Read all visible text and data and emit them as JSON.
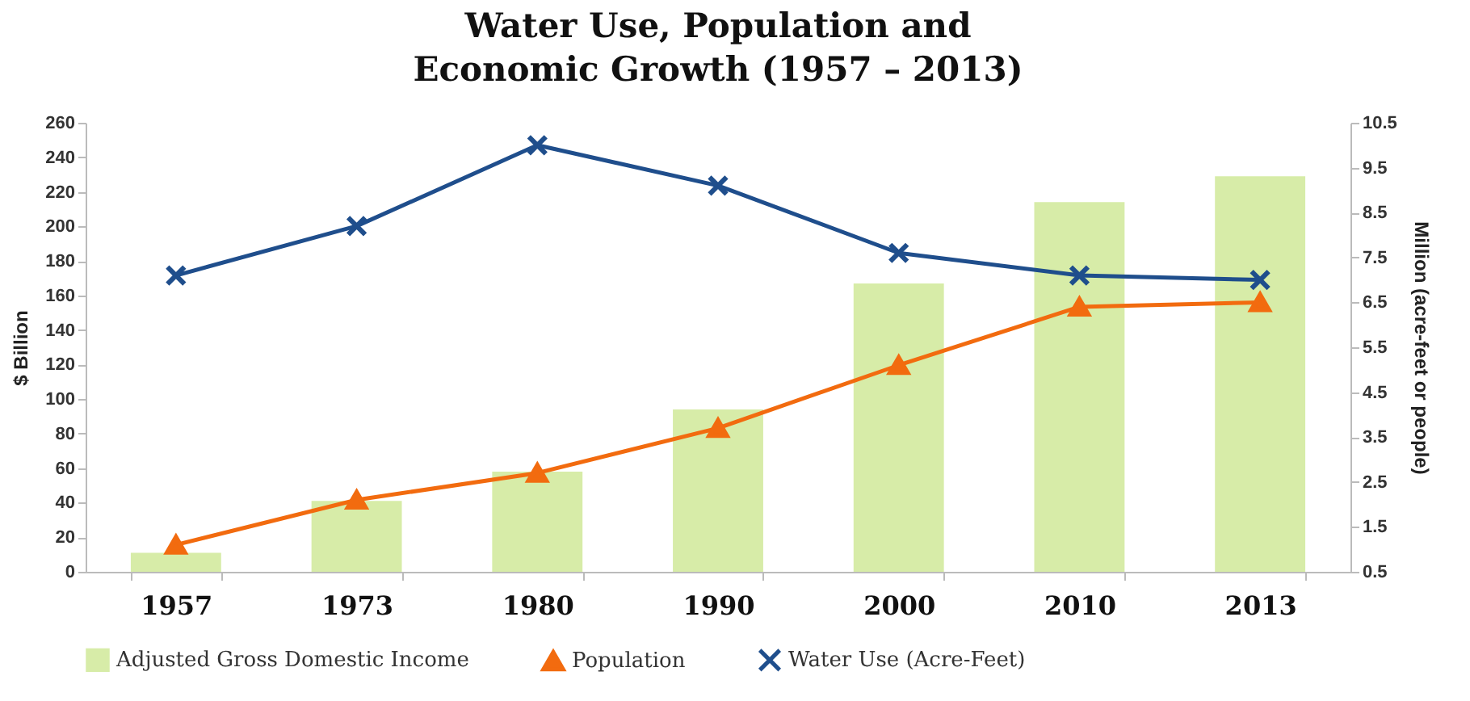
{
  "chart_data": {
    "type": "bar",
    "title": "Water Use, Population and Economic Growth (1957 – 2013)",
    "ylabel": "$ Billion",
    "y2label": "Million (acre-feet or people)",
    "categories": [
      "1957",
      "1973",
      "1980",
      "1990",
      "2000",
      "2010",
      "2013"
    ],
    "series": [
      {
        "name": "Adjusted Gross Domestic Income",
        "color": "#d7eca8",
        "values": [
          11,
          41,
          58,
          94,
          167,
          214,
          229
        ]
      },
      {
        "name": "Population",
        "type": "line",
        "axis": "y2",
        "marker": "triangle",
        "color": "#f26b0f",
        "values": [
          1.1,
          2.1,
          2.7,
          3.7,
          5.1,
          6.4,
          6.5
        ]
      },
      {
        "name": "Water Use (Acre-Feet)",
        "type": "line",
        "axis": "y2",
        "marker": "cross",
        "color": "#1f4e8c",
        "values": [
          7.1,
          8.2,
          10.0,
          9.1,
          7.6,
          7.1,
          7.0
        ]
      }
    ],
    "ylim": [
      0,
      260
    ],
    "yticks": [
      0,
      20,
      40,
      60,
      80,
      100,
      120,
      140,
      160,
      180,
      200,
      220,
      240,
      260
    ],
    "y2lim": [
      0.5,
      10.5
    ],
    "y2ticks": [
      0.5,
      1.5,
      2.5,
      3.5,
      4.5,
      5.5,
      6.5,
      7.5,
      8.5,
      9.5,
      10.5
    ],
    "legend": "bottom"
  }
}
